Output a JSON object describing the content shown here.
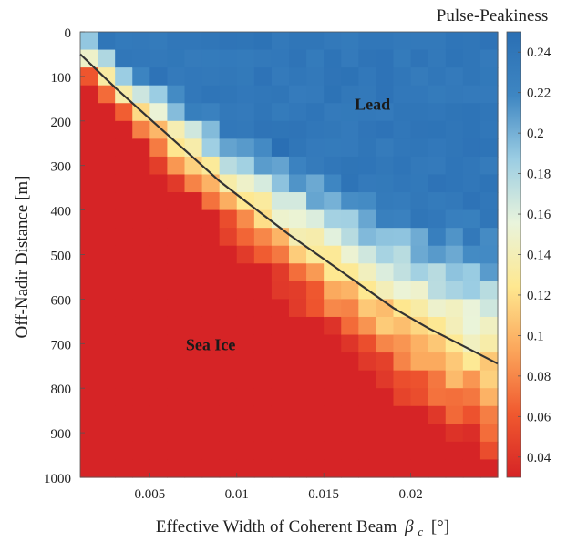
{
  "chart_data": {
    "type": "heatmap",
    "xlabel": "Effective Width of Coherent Beam",
    "xlabel_symbol": "β",
    "xlabel_subscript": "c",
    "xlabel_unit": "[°]",
    "ylabel": "Off-Nadir Distance [m]",
    "colorbar_title": "Pulse-Peakiness",
    "xlim": [
      0.001,
      0.025
    ],
    "ylim": [
      0,
      1000
    ],
    "y_reversed": true,
    "x_ticks": [
      0.005,
      0.01,
      0.015,
      0.02
    ],
    "x_tick_labels": [
      "0.005",
      "0.01",
      "0.015",
      "0.02"
    ],
    "y_ticks": [
      0,
      100,
      200,
      300,
      400,
      500,
      600,
      700,
      800,
      900,
      1000
    ],
    "y_tick_labels": [
      "0",
      "100",
      "200",
      "300",
      "400",
      "500",
      "600",
      "700",
      "800",
      "900",
      "1000"
    ],
    "colorbar_range": [
      0.03,
      0.25
    ],
    "colorbar_ticks": [
      0.04,
      0.06,
      0.08,
      0.1,
      0.12,
      0.14,
      0.16,
      0.18,
      0.2,
      0.22,
      0.24
    ],
    "colorbar_tick_labels": [
      "0.04",
      "0.06",
      "0.08",
      "0.1",
      "0.12",
      "0.14",
      "0.16",
      "0.18",
      "0.2",
      "0.22",
      "0.24"
    ],
    "colormap": [
      "#d62426",
      "#f0592f",
      "#fba65b",
      "#fee890",
      "#e9f4dc",
      "#9bcde3",
      "#3e86c2",
      "#2a6fb4"
    ],
    "grid": {
      "x_cells": 24,
      "y_cells": 25,
      "cell_width": 0.001,
      "cell_height": 40
    },
    "boundary_line": {
      "x": [
        0.001,
        0.003,
        0.005,
        0.007,
        0.009,
        0.011,
        0.013,
        0.015,
        0.017,
        0.019,
        0.021,
        0.023,
        0.025
      ],
      "y": [
        50,
        125,
        195,
        265,
        335,
        395,
        455,
        510,
        565,
        620,
        665,
        705,
        745
      ],
      "color": "#333333"
    },
    "annotations": [
      {
        "text": "Lead",
        "x": 0.0178,
        "y": 175
      },
      {
        "text": "Sea Ice",
        "x": 0.0085,
        "y": 715
      }
    ]
  }
}
